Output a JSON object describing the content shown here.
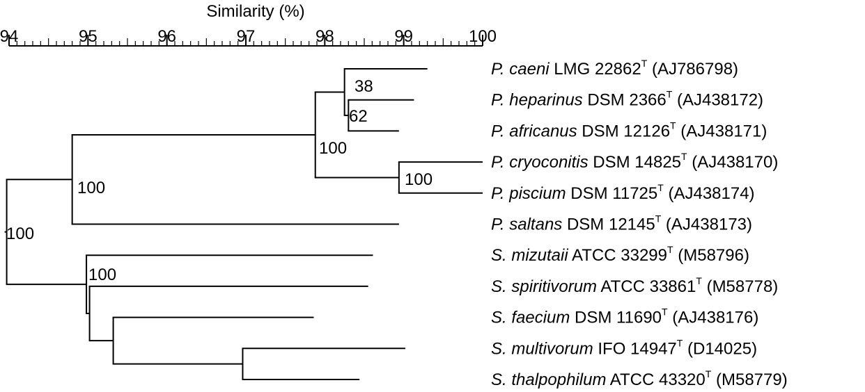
{
  "axis": {
    "title": "Similarity (%)",
    "min": 94,
    "max": 100,
    "major_ticks": [
      94,
      95,
      96,
      97,
      98,
      99,
      100
    ],
    "tick_labels": [
      "94",
      "95",
      "96",
      "97",
      "98",
      "99",
      "100"
    ]
  },
  "taxa": [
    {
      "genus": "P.",
      "species": "caeni",
      "strain": "LMG 22862",
      "type_mark": "T",
      "accession": "(AJ786798)",
      "tip_similarity": 99.3
    },
    {
      "genus": "P.",
      "species": "heparinus",
      "strain": "DSM 2366",
      "type_mark": "T",
      "accession": "(AJ438172)",
      "tip_similarity": 99.13
    },
    {
      "genus": "P.",
      "species": "africanus",
      "strain": "DSM 12126",
      "type_mark": "T",
      "accession": "(AJ438171)",
      "tip_similarity": 98.94
    },
    {
      "genus": "P.",
      "species": "cryoconitis",
      "strain": "DSM 14825",
      "type_mark": "T",
      "accession": "(AJ438170)",
      "tip_similarity": 100
    },
    {
      "genus": "P.",
      "species": "piscium",
      "strain": "DSM 11725",
      "type_mark": "T",
      "accession": "(AJ438174)",
      "tip_similarity": 100
    },
    {
      "genus": "P.",
      "species": "saltans",
      "strain": "DSM 12145",
      "type_mark": "T",
      "accession": "(AJ438173)",
      "tip_similarity": 98.94
    },
    {
      "genus": "S.",
      "species": "mizutaii",
      "strain": "ATCC 33299",
      "type_mark": "T",
      "accession": "(M58796)",
      "tip_similarity": 98.61
    },
    {
      "genus": "S.",
      "species": "spiritivorum",
      "strain": "ATCC 33861",
      "type_mark": "T",
      "accession": "(M58778)",
      "tip_similarity": 98.55
    },
    {
      "genus": "S.",
      "species": "faecium",
      "strain": "DSM 11690",
      "type_mark": "T",
      "accession": "(AJ438176)",
      "tip_similarity": 97.86
    },
    {
      "genus": "S.",
      "species": "multivorum",
      "strain": "IFO 14947",
      "type_mark": "T",
      "accession": "(D14025)",
      "tip_similarity": 99.02
    },
    {
      "genus": "S.",
      "species": "thalpophilum",
      "strain": "ATCC 43320",
      "type_mark": "T",
      "accession": "(M58779)",
      "tip_similarity": 98.44
    }
  ],
  "nodes": [
    {
      "id": "root",
      "similarity": 93.97,
      "children": [
        "P_group",
        "S_group"
      ],
      "bootstrap": "100"
    },
    {
      "id": "P_group",
      "similarity": 94.8,
      "children": [
        "P_core",
        "t5"
      ],
      "bootstrap": "100"
    },
    {
      "id": "P_core",
      "similarity": 97.88,
      "children": [
        "H3",
        "C_pair"
      ],
      "bootstrap": "100"
    },
    {
      "id": "H3",
      "similarity": 98.25,
      "children": [
        "t0",
        "H2"
      ],
      "bootstrap": "62"
    },
    {
      "id": "H2",
      "similarity": 98.3,
      "children": [
        "t1",
        "t2"
      ],
      "bootstrap": "38"
    },
    {
      "id": "C_pair",
      "similarity": 98.94,
      "children": [
        "t3",
        "t4"
      ],
      "bootstrap": "100"
    },
    {
      "id": "S_group",
      "similarity": 94.98,
      "children": [
        "S_core",
        "t6"
      ],
      "bootstrap": ""
    },
    {
      "id": "S_core",
      "similarity": 95.02,
      "children": [
        "t7",
        "S_sub"
      ],
      "bootstrap": "100"
    },
    {
      "id": "S_sub",
      "similarity": 95.32,
      "children": [
        "t8",
        "M_pair"
      ],
      "bootstrap": ""
    },
    {
      "id": "M_pair",
      "similarity": 96.96,
      "children": [
        "t9",
        "t10"
      ],
      "bootstrap": ""
    }
  ]
}
